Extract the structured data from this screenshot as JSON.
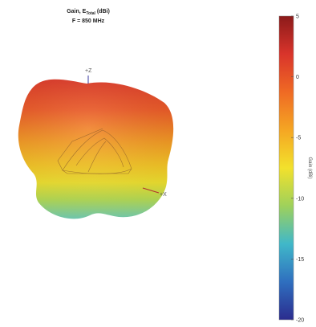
{
  "chart_data": {
    "type": "3d-radiation-pattern",
    "title_line1": "Gain, E",
    "title_subscript": "Total",
    "title_suffix": " (dBi)",
    "title_line2": "F = 850 MHz",
    "axes": {
      "z_label": "+Z",
      "x_label": "+X"
    },
    "colorbar": {
      "label": "Gain (dBi)",
      "min": -20,
      "max": 5,
      "ticks": [
        5,
        0,
        -5,
        -10,
        -15,
        -20
      ],
      "colormap": [
        "#8b1a1a",
        "#d9342b",
        "#ef6a24",
        "#f5a623",
        "#f2e12c",
        "#9fd15b",
        "#40b8c9",
        "#2f6fbf",
        "#2b2c8e"
      ]
    }
  }
}
